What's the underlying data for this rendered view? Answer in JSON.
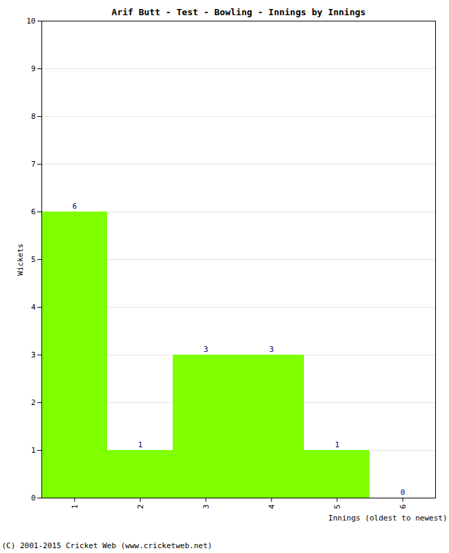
{
  "chart_data": {
    "type": "bar",
    "title": "Arif Butt - Test - Bowling - Innings by Innings",
    "x_label": "Innings (oldest to newest)",
    "y_label": "Wickets",
    "categories": [
      "1",
      "2",
      "3",
      "4",
      "5",
      "6"
    ],
    "values": [
      6,
      1,
      3,
      3,
      1,
      0
    ],
    "color": "#80ff00",
    "ylim": [
      0,
      10
    ],
    "yticks": [
      0,
      1,
      2,
      3,
      4,
      5,
      6,
      7,
      8,
      9,
      10
    ],
    "grid": true,
    "data_labels": true,
    "footer": "(C) 2001-2015 Cricket Web (www.cricketweb.net)"
  }
}
